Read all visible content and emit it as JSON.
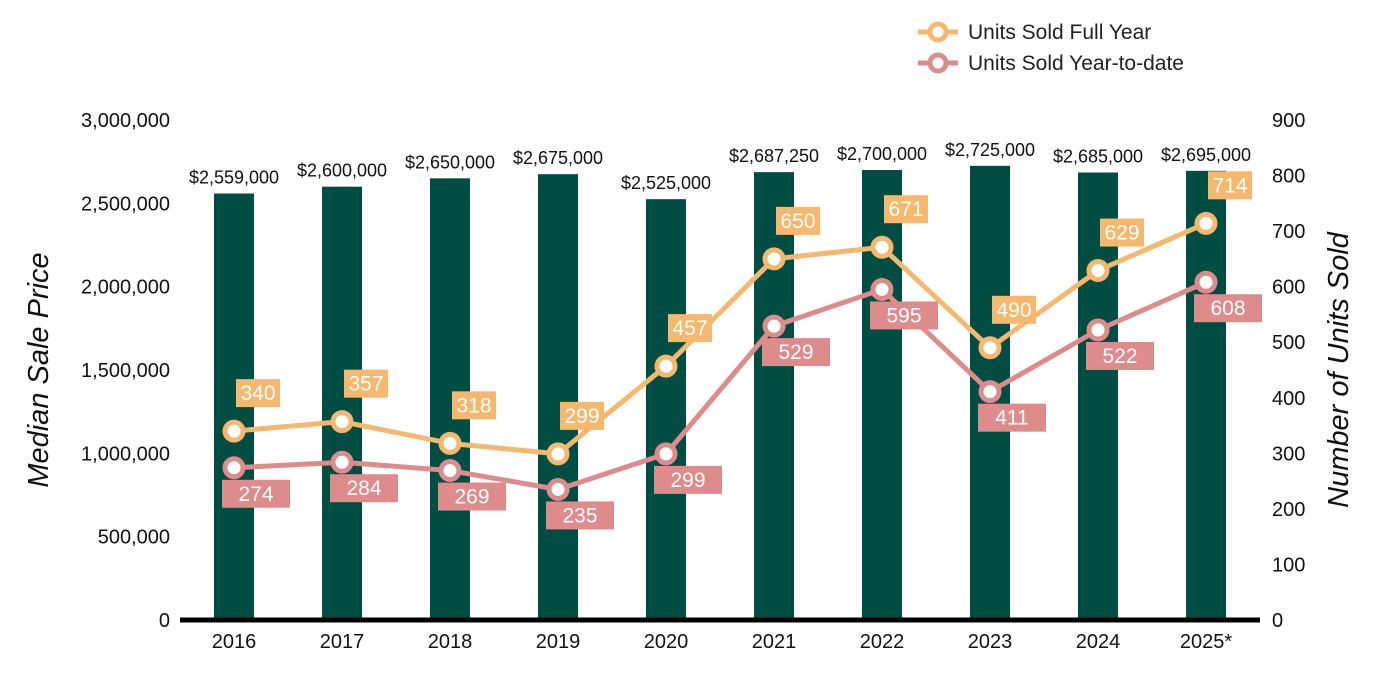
{
  "chart_data": {
    "type": "bar",
    "categories": [
      "2016",
      "2017",
      "2018",
      "2019",
      "2020",
      "2021",
      "2022",
      "2023",
      "2024",
      "2025*"
    ],
    "bars": {
      "name": "Median Sale Price",
      "axis": "left",
      "values": [
        2559000,
        2600000,
        2650000,
        2675000,
        2525000,
        2687250,
        2700000,
        2725000,
        2685000,
        2695000
      ],
      "labels": [
        "$2,559,000",
        "$2,600,000",
        "$2,650,000",
        "$2,675,000",
        "$2,525,000",
        "$2,687,250",
        "$2,700,000",
        "$2,725,000",
        "$2,685,000",
        "$2,695,000"
      ]
    },
    "series": [
      {
        "name": "Units Sold Full Year",
        "type": "line",
        "axis": "right",
        "values": [
          340,
          357,
          318,
          299,
          457,
          650,
          671,
          490,
          629,
          714
        ]
      },
      {
        "name": "Units Sold Year-to-date",
        "type": "line",
        "axis": "right",
        "values": [
          274,
          284,
          269,
          235,
          299,
          529,
          595,
          411,
          522,
          608
        ]
      }
    ],
    "ylabel": "Median Sale Price",
    "y2label": "Number of Units Sold",
    "ylim": [
      0,
      3000000
    ],
    "y2lim": [
      0,
      900
    ],
    "yticks": [
      "0",
      "500,000",
      "1,000,000",
      "1,500,000",
      "2,000,000",
      "2,500,000",
      "3,000,000"
    ],
    "y2ticks": [
      "0",
      "100",
      "200",
      "300",
      "400",
      "500",
      "600",
      "700",
      "800",
      "900"
    ],
    "legend_position": "top-right",
    "grid": false
  },
  "colors": {
    "bar": "#004d43",
    "full_year": "#f5b86e",
    "ytd": "#de8b8c",
    "axis": "#000000"
  }
}
